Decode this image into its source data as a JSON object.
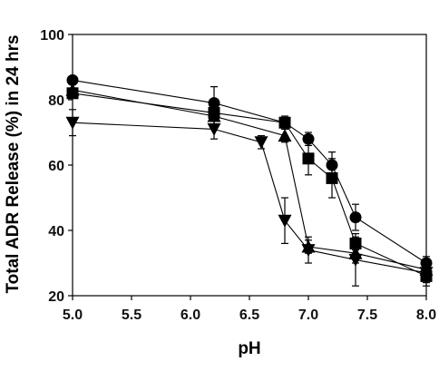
{
  "chart_data": {
    "type": "scatter",
    "xlabel": "pH",
    "ylabel": "Total ADR Release (%) in 24 hrs",
    "xlim": [
      5.0,
      8.0
    ],
    "ylim": [
      20,
      100
    ],
    "xticks": [
      "5.0",
      "5.5",
      "6.0",
      "6.5",
      "7.0",
      "7.5",
      "8.0"
    ],
    "yticks": [
      "20",
      "40",
      "60",
      "80",
      "100"
    ],
    "grid": false,
    "legend": "none",
    "series": [
      {
        "marker": "circle",
        "points": [
          {
            "x": 5.0,
            "y": 86,
            "err": 0
          },
          {
            "x": 6.2,
            "y": 79,
            "err": 5
          },
          {
            "x": 6.8,
            "y": 73,
            "err": 1
          },
          {
            "x": 7.0,
            "y": 68,
            "err": 2
          },
          {
            "x": 7.2,
            "y": 60,
            "err": 4
          },
          {
            "x": 7.4,
            "y": 44,
            "err": 4
          },
          {
            "x": 8.0,
            "y": 30,
            "err": 2
          }
        ]
      },
      {
        "marker": "square",
        "points": [
          {
            "x": 5.0,
            "y": 82,
            "err": 1
          },
          {
            "x": 6.2,
            "y": 76,
            "err": 4
          },
          {
            "x": 6.8,
            "y": 73,
            "err": 2
          },
          {
            "x": 7.0,
            "y": 62,
            "err": 5
          },
          {
            "x": 7.2,
            "y": 56,
            "err": 6
          },
          {
            "x": 7.4,
            "y": 36,
            "err": 2
          },
          {
            "x": 8.0,
            "y": 26,
            "err": 3
          }
        ]
      },
      {
        "marker": "triangle-up",
        "points": [
          {
            "x": 5.0,
            "y": 83,
            "err": 0
          },
          {
            "x": 6.2,
            "y": 75,
            "err": 3
          },
          {
            "x": 6.8,
            "y": 69,
            "err": 2
          },
          {
            "x": 7.0,
            "y": 35,
            "err": 2
          },
          {
            "x": 7.4,
            "y": 33,
            "err": 3
          },
          {
            "x": 8.0,
            "y": 28,
            "err": 2
          }
        ]
      },
      {
        "marker": "triangle-down",
        "points": [
          {
            "x": 5.0,
            "y": 73,
            "err": 4
          },
          {
            "x": 6.2,
            "y": 71,
            "err": 3
          },
          {
            "x": 6.6,
            "y": 67,
            "err": 2
          },
          {
            "x": 6.8,
            "y": 43,
            "err": 7
          },
          {
            "x": 7.0,
            "y": 34,
            "err": 4
          },
          {
            "x": 7.4,
            "y": 31,
            "err": 8
          },
          {
            "x": 8.0,
            "y": 27,
            "err": 3
          }
        ]
      }
    ]
  }
}
